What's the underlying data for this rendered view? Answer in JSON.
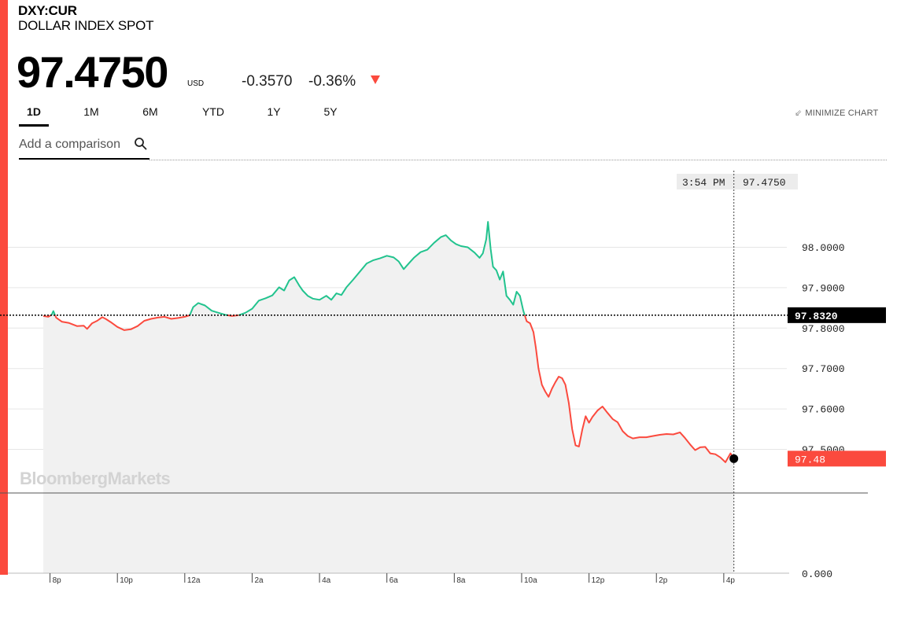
{
  "header": {
    "ticker": "DXY:CUR",
    "name": "DOLLAR INDEX SPOT",
    "price": "97.4750",
    "currency": "USD",
    "change": "-0.3570",
    "change_pct": "-0.36%"
  },
  "tabs": [
    "1D",
    "1M",
    "6M",
    "YTD",
    "1Y",
    "5Y"
  ],
  "active_tab": "1D",
  "minimize_label": "MINIMIZE CHART",
  "compare": {
    "placeholder": "Add a comparison"
  },
  "colors": {
    "accent": "#fb4a3e",
    "up": "#22c38e",
    "down": "#fb4a3e",
    "area": "#f1f1f1"
  },
  "chart_data": {
    "type": "line",
    "title": "",
    "xlabel": "",
    "ylabel": "",
    "x_ticks": [
      "8p",
      "10p",
      "12a",
      "2a",
      "4a",
      "6a",
      "8a",
      "10a",
      "12p",
      "2p",
      "4p"
    ],
    "y_ticks": [
      "98.0000",
      "97.9000",
      "97.8000",
      "97.7000",
      "97.6000",
      "97.5000"
    ],
    "y_zero_label": "0.000",
    "ylim": [
      97.285,
      98.18
    ],
    "x_range_hours": [
      0,
      20.6
    ],
    "previous_close": 97.832,
    "previous_close_label": "97.8320",
    "last_price_label": "97.48",
    "crosshair_time": "3:54 PM",
    "crosshair_value": "97.4750",
    "watermark": "BloombergMarkets",
    "series": [
      {
        "values": [
          [
            0.0,
            97.83
          ],
          [
            0.15,
            97.828
          ],
          [
            0.25,
            97.833
          ],
          [
            0.3,
            97.842
          ],
          [
            0.38,
            97.826
          ],
          [
            0.55,
            97.816
          ],
          [
            0.75,
            97.813
          ],
          [
            1.0,
            97.805
          ],
          [
            1.2,
            97.806
          ],
          [
            1.3,
            97.798
          ],
          [
            1.45,
            97.812
          ],
          [
            1.6,
            97.818
          ],
          [
            1.75,
            97.827
          ],
          [
            1.85,
            97.823
          ],
          [
            2.0,
            97.815
          ],
          [
            2.2,
            97.803
          ],
          [
            2.4,
            97.795
          ],
          [
            2.6,
            97.797
          ],
          [
            2.8,
            97.805
          ],
          [
            3.0,
            97.818
          ],
          [
            3.2,
            97.823
          ],
          [
            3.4,
            97.826
          ],
          [
            3.6,
            97.828
          ],
          [
            3.8,
            97.823
          ],
          [
            4.0,
            97.825
          ],
          [
            4.2,
            97.828
          ],
          [
            4.35,
            97.832
          ],
          [
            4.45,
            97.852
          ],
          [
            4.6,
            97.862
          ],
          [
            4.8,
            97.856
          ],
          [
            5.0,
            97.843
          ],
          [
            5.2,
            97.838
          ],
          [
            5.4,
            97.833
          ],
          [
            5.6,
            97.83
          ],
          [
            5.8,
            97.832
          ],
          [
            6.0,
            97.838
          ],
          [
            6.2,
            97.848
          ],
          [
            6.4,
            97.868
          ],
          [
            6.6,
            97.874
          ],
          [
            6.8,
            97.881
          ],
          [
            7.0,
            97.901
          ],
          [
            7.15,
            97.893
          ],
          [
            7.3,
            97.918
          ],
          [
            7.45,
            97.926
          ],
          [
            7.6,
            97.905
          ],
          [
            7.7,
            97.893
          ],
          [
            7.85,
            97.88
          ],
          [
            8.0,
            97.873
          ],
          [
            8.2,
            97.87
          ],
          [
            8.4,
            97.88
          ],
          [
            8.55,
            97.87
          ],
          [
            8.7,
            97.886
          ],
          [
            8.85,
            97.882
          ],
          [
            9.0,
            97.901
          ],
          [
            9.2,
            97.92
          ],
          [
            9.4,
            97.94
          ],
          [
            9.6,
            97.96
          ],
          [
            9.8,
            97.968
          ],
          [
            10.0,
            97.973
          ],
          [
            10.2,
            97.979
          ],
          [
            10.4,
            97.975
          ],
          [
            10.55,
            97.965
          ],
          [
            10.7,
            97.946
          ],
          [
            10.85,
            97.96
          ],
          [
            11.0,
            97.974
          ],
          [
            11.2,
            97.988
          ],
          [
            11.4,
            97.994
          ],
          [
            11.6,
            98.011
          ],
          [
            11.8,
            98.025
          ],
          [
            11.95,
            98.03
          ],
          [
            12.1,
            98.017
          ],
          [
            12.25,
            98.008
          ],
          [
            12.4,
            98.003
          ],
          [
            12.6,
            98.0
          ],
          [
            12.8,
            97.987
          ],
          [
            12.95,
            97.974
          ],
          [
            13.05,
            97.985
          ],
          [
            13.15,
            98.02
          ],
          [
            13.2,
            98.063
          ],
          [
            13.28,
            97.996
          ],
          [
            13.35,
            97.952
          ],
          [
            13.45,
            97.943
          ],
          [
            13.55,
            97.92
          ],
          [
            13.65,
            97.94
          ],
          [
            13.75,
            97.88
          ],
          [
            13.85,
            97.87
          ],
          [
            13.95,
            97.858
          ],
          [
            14.05,
            97.89
          ],
          [
            14.15,
            97.88
          ],
          [
            14.25,
            97.843
          ],
          [
            14.35,
            97.817
          ],
          [
            14.45,
            97.812
          ],
          [
            14.55,
            97.79
          ],
          [
            14.62,
            97.752
          ],
          [
            14.7,
            97.7
          ],
          [
            14.8,
            97.66
          ],
          [
            14.9,
            97.643
          ],
          [
            15.0,
            97.63
          ],
          [
            15.1,
            97.65
          ],
          [
            15.2,
            97.666
          ],
          [
            15.3,
            97.68
          ],
          [
            15.4,
            97.676
          ],
          [
            15.5,
            97.66
          ],
          [
            15.6,
            97.615
          ],
          [
            15.7,
            97.55
          ],
          [
            15.8,
            97.51
          ],
          [
            15.9,
            97.507
          ],
          [
            16.0,
            97.548
          ],
          [
            16.1,
            97.582
          ],
          [
            16.2,
            97.566
          ],
          [
            16.3,
            97.58
          ],
          [
            16.45,
            97.596
          ],
          [
            16.6,
            97.606
          ],
          [
            16.75,
            97.59
          ],
          [
            16.9,
            97.575
          ],
          [
            17.05,
            97.567
          ],
          [
            17.2,
            97.545
          ],
          [
            17.35,
            97.533
          ],
          [
            17.5,
            97.527
          ],
          [
            17.7,
            97.53
          ],
          [
            17.9,
            97.53
          ],
          [
            18.1,
            97.533
          ],
          [
            18.3,
            97.536
          ],
          [
            18.5,
            97.538
          ],
          [
            18.7,
            97.537
          ],
          [
            18.9,
            97.542
          ],
          [
            19.05,
            97.528
          ],
          [
            19.2,
            97.512
          ],
          [
            19.35,
            97.498
          ],
          [
            19.5,
            97.505
          ],
          [
            19.65,
            97.506
          ],
          [
            19.8,
            97.49
          ],
          [
            19.95,
            97.488
          ],
          [
            20.1,
            97.48
          ],
          [
            20.25,
            97.468
          ],
          [
            20.4,
            97.49
          ],
          [
            20.5,
            97.477
          ]
        ]
      }
    ]
  }
}
